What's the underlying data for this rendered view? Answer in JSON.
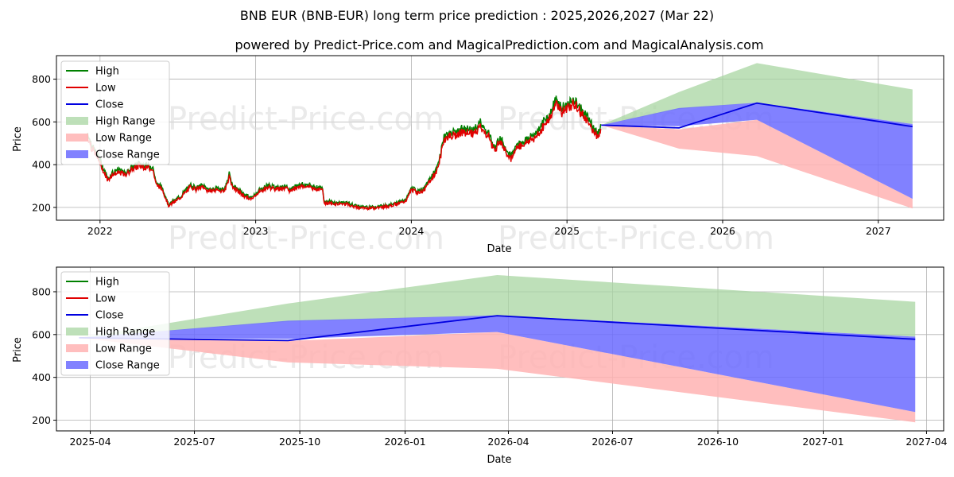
{
  "title": "BNB EUR (BNB-EUR) long term price prediction : 2025,2026,2027 (Mar 22)",
  "subtitle": "powered by Predict-Price.com and MagicalPrediction.com and MagicalAnalysis.com",
  "watermark": "Predict-Price.com",
  "colors": {
    "high": "#008000",
    "low": "#e00000",
    "close": "#0000e0",
    "high_range": "#a8d5a2",
    "low_range": "#ffb3b3",
    "close_range": "#6b6bff"
  },
  "legend": [
    "High",
    "Low",
    "Close",
    "High Range",
    "Low Range",
    "Close Range"
  ],
  "chart_data": [
    {
      "type": "line",
      "id": "top",
      "xlabel": "Date",
      "ylabel": "Price",
      "x_range": [
        2021.72,
        2027.42
      ],
      "ylim": [
        140,
        910
      ],
      "xticks": [
        2022,
        2023,
        2024,
        2025,
        2026,
        2027
      ],
      "xtick_labels": [
        "2022",
        "2023",
        "2024",
        "2025",
        "2026",
        "2027"
      ],
      "yticks": [
        200,
        400,
        600,
        800
      ],
      "grid": true,
      "legend_position": "top-left",
      "history_keypoints": [
        [
          2021.92,
          540
        ],
        [
          2021.95,
          480
        ],
        [
          2021.99,
          430
        ],
        [
          2022.02,
          380
        ],
        [
          2022.05,
          330
        ],
        [
          2022.08,
          360
        ],
        [
          2022.12,
          370
        ],
        [
          2022.16,
          355
        ],
        [
          2022.2,
          380
        ],
        [
          2022.25,
          400
        ],
        [
          2022.3,
          390
        ],
        [
          2022.34,
          385
        ],
        [
          2022.36,
          310
        ],
        [
          2022.4,
          290
        ],
        [
          2022.44,
          210
        ],
        [
          2022.47,
          225
        ],
        [
          2022.52,
          250
        ],
        [
          2022.58,
          300
        ],
        [
          2022.62,
          290
        ],
        [
          2022.66,
          300
        ],
        [
          2022.7,
          280
        ],
        [
          2022.76,
          285
        ],
        [
          2022.8,
          280
        ],
        [
          2022.83,
          350
        ],
        [
          2022.85,
          300
        ],
        [
          2022.92,
          260
        ],
        [
          2022.97,
          240
        ],
        [
          2023.02,
          275
        ],
        [
          2023.08,
          300
        ],
        [
          2023.12,
          290
        ],
        [
          2023.18,
          295
        ],
        [
          2023.22,
          280
        ],
        [
          2023.28,
          305
        ],
        [
          2023.34,
          300
        ],
        [
          2023.4,
          290
        ],
        [
          2023.43,
          285
        ],
        [
          2023.44,
          225
        ],
        [
          2023.5,
          220
        ],
        [
          2023.58,
          220
        ],
        [
          2023.64,
          205
        ],
        [
          2023.7,
          200
        ],
        [
          2023.76,
          200
        ],
        [
          2023.82,
          205
        ],
        [
          2023.88,
          215
        ],
        [
          2023.94,
          225
        ],
        [
          2023.97,
          240
        ],
        [
          2024.0,
          285
        ],
        [
          2024.04,
          275
        ],
        [
          2024.08,
          280
        ],
        [
          2024.12,
          330
        ],
        [
          2024.16,
          370
        ],
        [
          2024.19,
          450
        ],
        [
          2024.21,
          530
        ],
        [
          2024.25,
          540
        ],
        [
          2024.3,
          550
        ],
        [
          2024.36,
          560
        ],
        [
          2024.4,
          550
        ],
        [
          2024.43,
          570
        ],
        [
          2024.44,
          610
        ],
        [
          2024.46,
          560
        ],
        [
          2024.5,
          540
        ],
        [
          2024.53,
          470
        ],
        [
          2024.57,
          520
        ],
        [
          2024.6,
          480
        ],
        [
          2024.64,
          430
        ],
        [
          2024.68,
          490
        ],
        [
          2024.72,
          500
        ],
        [
          2024.76,
          520
        ],
        [
          2024.8,
          540
        ],
        [
          2024.85,
          590
        ],
        [
          2024.9,
          640
        ],
        [
          2024.93,
          700
        ],
        [
          2024.97,
          650
        ],
        [
          2025.02,
          690
        ],
        [
          2025.06,
          680
        ],
        [
          2025.1,
          640
        ],
        [
          2025.14,
          600
        ],
        [
          2025.18,
          560
        ],
        [
          2025.2,
          540
        ],
        [
          2025.22,
          585
        ]
      ],
      "forecast": {
        "x": [
          2025.22,
          2025.72,
          2026.22,
          2027.22
        ],
        "high_range": {
          "upper": [
            585,
            740,
            875,
            752
          ],
          "lower": [
            585,
            660,
            690,
            590
          ]
        },
        "close_range": {
          "upper": [
            585,
            665,
            690,
            590
          ],
          "lower": [
            585,
            580,
            610,
            240
          ]
        },
        "low_range": {
          "upper": [
            585,
            565,
            610,
            240
          ],
          "lower": [
            585,
            475,
            440,
            195
          ]
        },
        "close": [
          585,
          572,
          688,
          578
        ]
      }
    },
    {
      "type": "line",
      "id": "bottom",
      "xlabel": "Date",
      "ylabel": "Price",
      "x_range": [
        2025.166,
        2027.288
      ],
      "ylim": [
        150,
        915
      ],
      "xticks": [
        2025.247,
        2025.496,
        2025.748,
        2026.0,
        2026.247,
        2026.496,
        2026.748,
        2027.0,
        2027.247
      ],
      "xtick_labels": [
        "2025-04",
        "2025-07",
        "2025-10",
        "2026-01",
        "2026-04",
        "2026-07",
        "2026-10",
        "2027-01",
        "2027-04"
      ],
      "yticks": [
        200,
        400,
        600,
        800
      ],
      "grid": true,
      "legend_position": "top-left",
      "forecast": {
        "x": [
          2025.22,
          2025.72,
          2026.22,
          2027.22
        ],
        "high_range": {
          "upper": [
            585,
            745,
            878,
            753
          ],
          "lower": [
            585,
            660,
            690,
            590
          ]
        },
        "close_range": {
          "upper": [
            585,
            665,
            690,
            590
          ],
          "lower": [
            585,
            580,
            612,
            238
          ]
        },
        "low_range": {
          "upper": [
            585,
            570,
            612,
            238
          ],
          "lower": [
            585,
            470,
            440,
            190
          ]
        },
        "close": [
          585,
          572,
          688,
          578
        ]
      }
    }
  ]
}
